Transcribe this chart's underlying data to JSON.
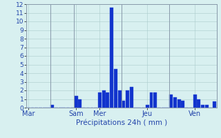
{
  "xlabel": "Précipitations 24h ( mm )",
  "ylim": [
    0,
    12
  ],
  "yticks": [
    0,
    1,
    2,
    3,
    4,
    5,
    6,
    7,
    8,
    9,
    10,
    11,
    12
  ],
  "background_color": "#d8f0f0",
  "bar_color": "#1133cc",
  "bar_edgecolor": "#3355dd",
  "values": [
    0,
    0,
    0,
    0,
    0,
    0,
    0.3,
    0,
    0,
    0,
    0,
    0,
    1.4,
    1.0,
    0,
    0,
    0,
    0,
    1.8,
    2.0,
    1.8,
    11.6,
    4.5,
    2.0,
    0.8,
    2.0,
    2.4,
    0,
    0,
    0,
    0.3,
    1.8,
    1.8,
    0,
    0,
    0,
    1.5,
    1.2,
    1.0,
    0.8,
    0,
    0,
    1.5,
    1.0,
    0.3,
    0.3,
    0,
    0.7
  ],
  "day_labels": [
    "Mar",
    "Sam",
    "Mer",
    "Jeu",
    "Ven"
  ],
  "day_positions": [
    0,
    12,
    18,
    30,
    42
  ],
  "day_line_positions": [
    6,
    12,
    24,
    36,
    48
  ],
  "grid_color": "#aacccc",
  "tick_label_color": "#2244aa",
  "sep_line_color": "#8899aa"
}
